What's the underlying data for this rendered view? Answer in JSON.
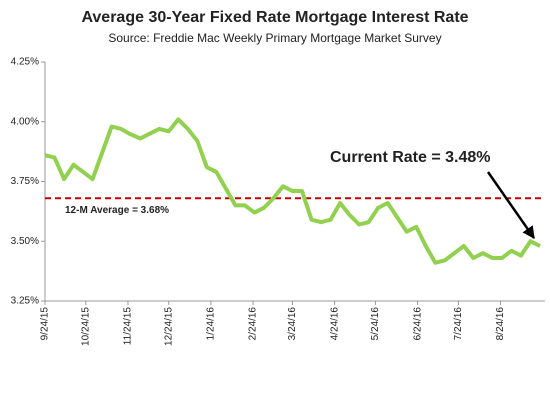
{
  "chart_data": {
    "type": "line",
    "title": "Average 30-Year Fixed Rate Mortgage Interest Rate",
    "subtitle": "Source: Freddie Mac Weekly Primary Mortgage Market Survey",
    "x": [
      "9/24/15",
      "10/1/15",
      "10/8/15",
      "10/15/15",
      "10/22/15",
      "10/29/15",
      "11/5/15",
      "11/12/15",
      "11/19/15",
      "11/25/15",
      "12/3/15",
      "12/10/15",
      "12/17/15",
      "12/24/15",
      "12/31/15",
      "1/7/16",
      "1/14/16",
      "1/21/16",
      "1/28/16",
      "2/4/16",
      "2/11/16",
      "2/18/16",
      "2/25/16",
      "3/3/16",
      "3/10/16",
      "3/17/16",
      "3/24/16",
      "3/31/16",
      "4/7/16",
      "4/14/16",
      "4/21/16",
      "4/28/16",
      "5/5/16",
      "5/12/16",
      "5/19/16",
      "5/26/16",
      "6/2/16",
      "6/9/16",
      "6/16/16",
      "6/23/16",
      "6/30/16",
      "7/7/16",
      "7/14/16",
      "7/21/16",
      "7/28/16",
      "8/4/16",
      "8/11/16",
      "8/18/16",
      "8/25/16",
      "9/1/16",
      "9/8/16",
      "9/15/16",
      "9/22/16"
    ],
    "series": [
      {
        "name": "30-Year Fixed Rate",
        "color": "#92d050",
        "values": [
          3.86,
          3.85,
          3.76,
          3.82,
          3.79,
          3.76,
          3.87,
          3.98,
          3.97,
          3.95,
          3.93,
          3.95,
          3.97,
          3.96,
          4.01,
          3.97,
          3.92,
          3.81,
          3.79,
          3.72,
          3.65,
          3.65,
          3.62,
          3.64,
          3.68,
          3.73,
          3.71,
          3.71,
          3.59,
          3.58,
          3.59,
          3.66,
          3.61,
          3.57,
          3.58,
          3.64,
          3.66,
          3.6,
          3.54,
          3.56,
          3.48,
          3.41,
          3.42,
          3.45,
          3.48,
          3.43,
          3.45,
          3.43,
          3.43,
          3.46,
          3.44,
          3.5,
          3.48
        ]
      }
    ],
    "xlim": [
      "9/24/15",
      "9/22/16"
    ],
    "xticks": [
      "9/24/15",
      "10/24/15",
      "11/24/15",
      "12/24/15",
      "1/24/16",
      "2/24/16",
      "3/24/16",
      "4/24/16",
      "5/24/16",
      "6/24/16",
      "7/24/16",
      "8/24/16"
    ],
    "ylim": [
      3.25,
      4.25
    ],
    "yticks": [
      {
        "value": 3.25,
        "label": "3.25%"
      },
      {
        "value": 3.5,
        "label": "3.50%"
      },
      {
        "value": 3.75,
        "label": "3.75%"
      },
      {
        "value": 4.0,
        "label": "4.00%"
      },
      {
        "value": 4.25,
        "label": "4.25%"
      }
    ],
    "average": {
      "value": 3.68,
      "label": "12-M Average = 3.68%",
      "color": "#c00000"
    },
    "annotation": {
      "text": "Current Rate = 3.48%",
      "color": "#c00000"
    }
  }
}
